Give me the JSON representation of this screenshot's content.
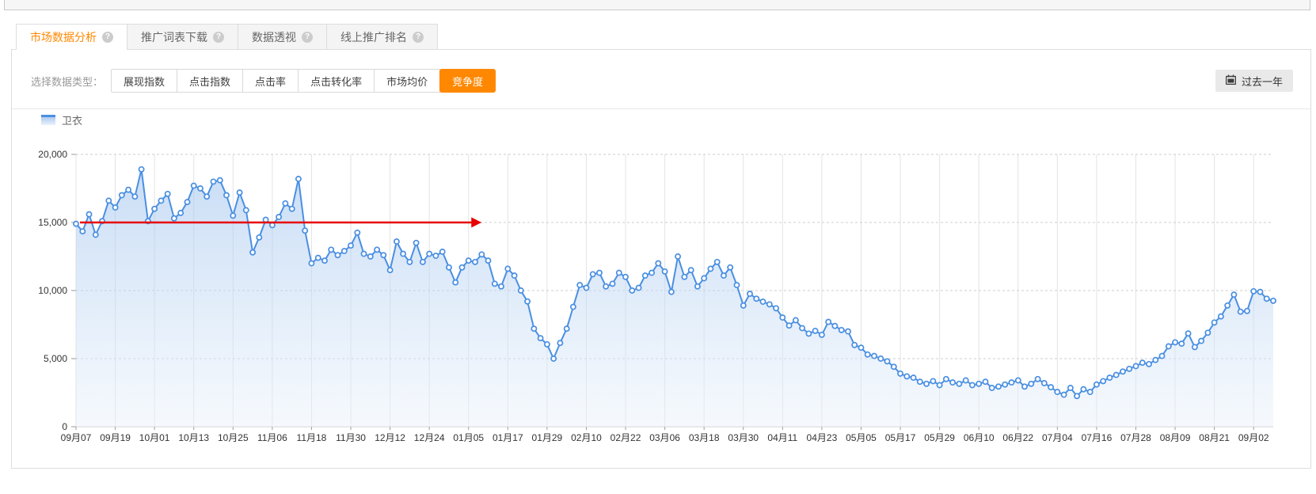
{
  "tabs": {
    "active_index": 0,
    "items": [
      {
        "label": "市场数据分析",
        "has_help": true
      },
      {
        "label": "推广词表下载",
        "has_help": true
      },
      {
        "label": "数据透视",
        "has_help": true
      },
      {
        "label": "线上推广排名",
        "has_help": true
      }
    ]
  },
  "icons": {
    "help": "?"
  },
  "controls": {
    "label": "选择数据类型：",
    "metrics": [
      {
        "label": "展现指数"
      },
      {
        "label": "点击指数"
      },
      {
        "label": "点击率"
      },
      {
        "label": "点击转化率"
      },
      {
        "label": "市场均价"
      },
      {
        "label": "竞争度"
      }
    ],
    "active_metric_index": 5,
    "range_button": {
      "label": "过去一年",
      "icon": "calendar-icon"
    }
  },
  "legend": {
    "name": "卫衣"
  },
  "colors": {
    "accent_orange": "#ff8800",
    "line_blue": "#4a8fe2",
    "dot_fill": "#ffffff",
    "area_top": "#9ec2ee",
    "area_bottom": "#eaf2fb",
    "annotation_red": "#e60000",
    "grid_vertical": "#e3e3e3",
    "grid_dashed": "#cccccc",
    "axis_text": "#333333"
  },
  "chart_data": {
    "type": "line",
    "title": "",
    "xlabel": "",
    "ylabel": "",
    "grid": true,
    "legend_position": "top-left",
    "ylim": [
      0,
      20000
    ],
    "y_ticks": [
      0,
      5000,
      10000,
      15000,
      20000
    ],
    "y_tick_labels": [
      "0",
      "5,000",
      "10,000",
      "15,000",
      "20,000"
    ],
    "x_tick_labels": [
      "09月07",
      "09月19",
      "10月01",
      "10月13",
      "10月25",
      "11月06",
      "11月18",
      "11月30",
      "12月12",
      "12月24",
      "01月05",
      "01月17",
      "01月29",
      "02月10",
      "02月22",
      "03月06",
      "03月18",
      "03月30",
      "04月11",
      "04月23",
      "05月05",
      "05月17",
      "05月29",
      "06月10",
      "06月22",
      "07月04",
      "07月16",
      "07月28",
      "08月09",
      "08月21",
      "09月02"
    ],
    "x_ticks_every_n_points": 6,
    "x_start_label": "09月07",
    "x_interval_days": 2,
    "series": [
      {
        "name": "卫衣",
        "values": [
          14900,
          14350,
          15600,
          14100,
          15100,
          16600,
          16100,
          17000,
          17400,
          16900,
          18900,
          15100,
          16000,
          16600,
          17100,
          15300,
          15700,
          16500,
          17700,
          17500,
          16900,
          18000,
          18100,
          17000,
          15500,
          17200,
          15900,
          12800,
          13900,
          15200,
          14800,
          15400,
          16400,
          16000,
          18200,
          14400,
          12000,
          12400,
          12200,
          13000,
          12600,
          12900,
          13300,
          14250,
          12700,
          12500,
          13000,
          12600,
          11500,
          13600,
          12700,
          12100,
          13500,
          12100,
          12700,
          12550,
          12850,
          11700,
          10600,
          11700,
          12200,
          12100,
          12650,
          12200,
          10500,
          10300,
          11600,
          11100,
          10000,
          9200,
          7200,
          6500,
          6050,
          5000,
          6150,
          7200,
          8800,
          10400,
          10200,
          11200,
          11300,
          10300,
          10500,
          11300,
          11000,
          10000,
          10200,
          11100,
          11300,
          12000,
          11400,
          9900,
          12500,
          11000,
          11500,
          10300,
          10900,
          11600,
          12100,
          11100,
          11700,
          10400,
          8900,
          9760,
          9400,
          9180,
          8990,
          8700,
          8020,
          7430,
          7820,
          7240,
          6840,
          7040,
          6750,
          7700,
          7400,
          7100,
          7000,
          6000,
          5800,
          5300,
          5200,
          5000,
          4800,
          4400,
          3900,
          3700,
          3600,
          3300,
          3150,
          3350,
          3050,
          3500,
          3250,
          3150,
          3400,
          3050,
          3150,
          3300,
          2850,
          2950,
          3100,
          3250,
          3400,
          2950,
          3150,
          3500,
          3200,
          2900,
          2550,
          2350,
          2850,
          2250,
          2750,
          2550,
          3100,
          3350,
          3600,
          3800,
          4050,
          4250,
          4450,
          4700,
          4600,
          4900,
          5200,
          5900,
          6200,
          6100,
          6850,
          5850,
          6300,
          6900,
          7650,
          8100,
          8900,
          9700,
          8450,
          8500,
          9950,
          9900,
          9400,
          9250
        ]
      }
    ],
    "annotations": [
      {
        "type": "arrow",
        "y_value": 15000,
        "from_point_index": 0.6,
        "to_point_index": 62,
        "color": "#e60000"
      }
    ]
  }
}
